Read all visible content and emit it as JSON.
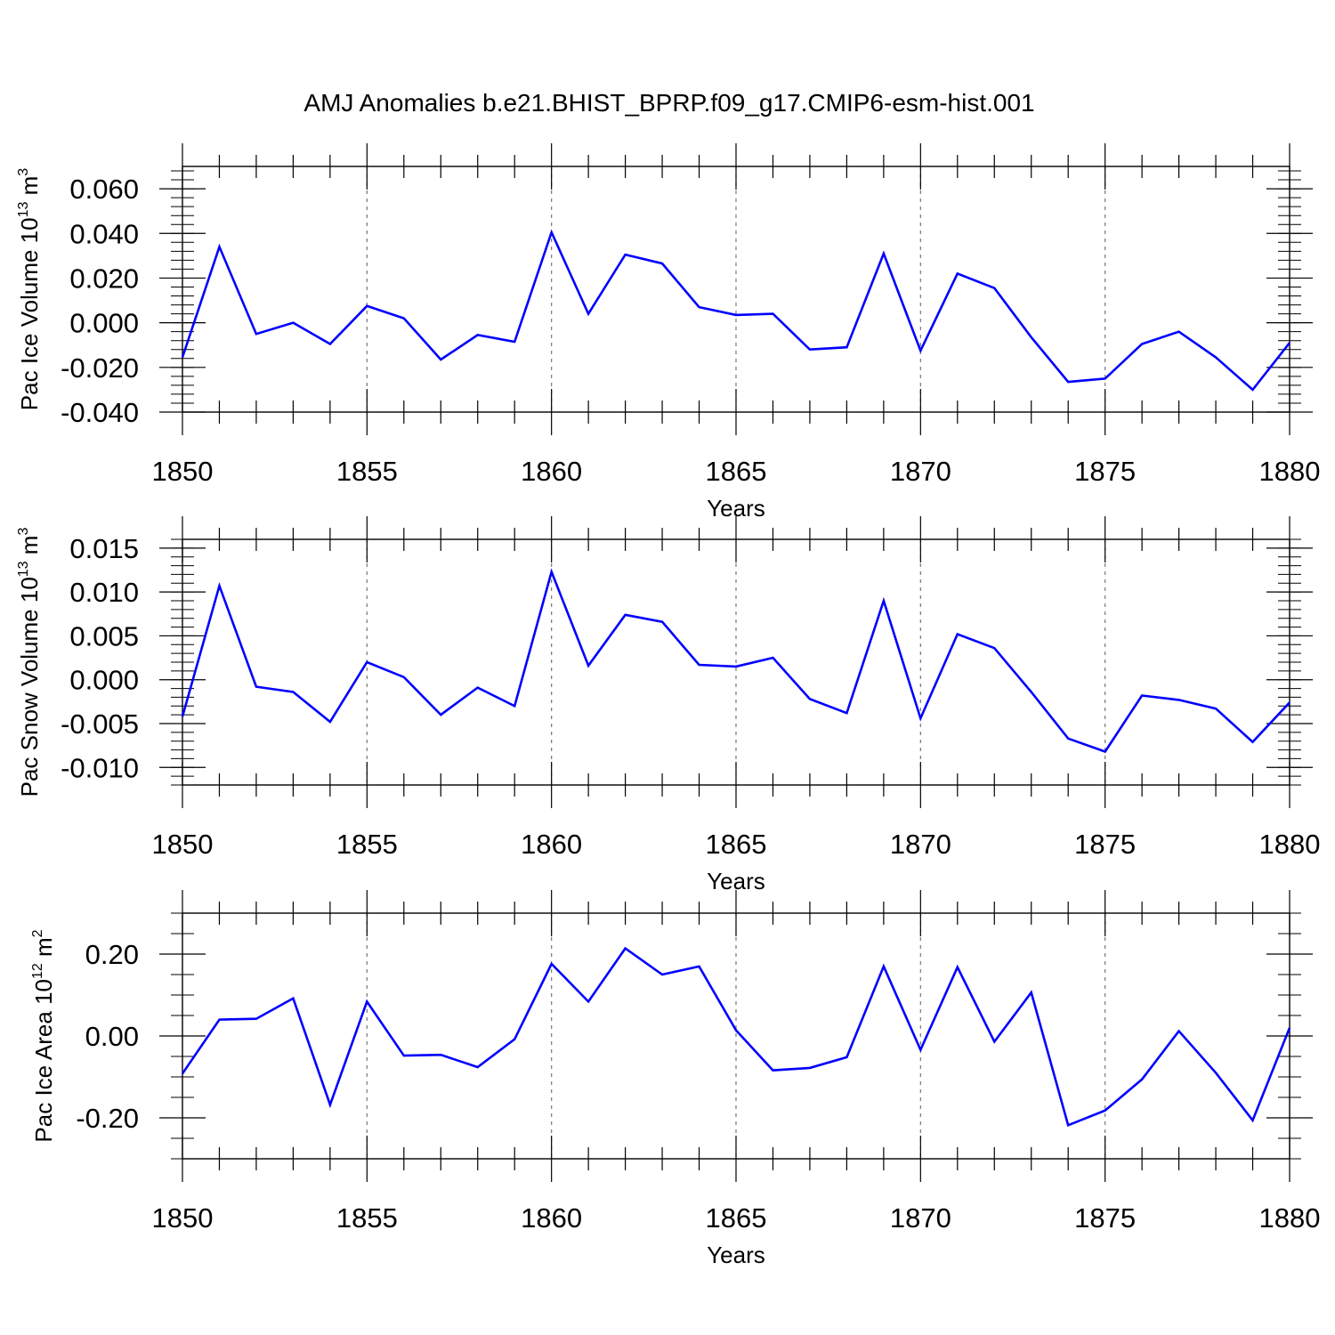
{
  "title": "AMJ Anomalies b.e21.BHIST_BPRP.f09_g17.CMIP6-esm-hist.001",
  "line_color": "#0000ff",
  "chart_data": [
    {
      "type": "line",
      "ylabel": "Pac Ice Volume",
      "ylabel_unit": "10",
      "ylabel_exp": "13",
      "ylabel_unit_tail": " m",
      "ylabel_unit_exp": "3",
      "xlabel": "Years",
      "xlim": [
        1850,
        1880
      ],
      "ylim": [
        -0.04,
        0.07
      ],
      "x_ticks": [
        "1850",
        "1855",
        "1860",
        "1865",
        "1870",
        "1875",
        "1880"
      ],
      "y_ticks": [
        {
          "v": 0.06,
          "label": "0.060"
        },
        {
          "v": 0.04,
          "label": "0.040"
        },
        {
          "v": 0.02,
          "label": "0.020"
        },
        {
          "v": 0.0,
          "label": "0.000"
        },
        {
          "v": -0.02,
          "label": "-0.020"
        },
        {
          "v": -0.04,
          "label": "-0.040"
        }
      ],
      "y_minor_step": 0.004,
      "x": [
        1850,
        1851,
        1852,
        1853,
        1854,
        1855,
        1856,
        1857,
        1858,
        1859,
        1860,
        1861,
        1862,
        1863,
        1864,
        1865,
        1866,
        1867,
        1868,
        1869,
        1870,
        1871,
        1872,
        1873,
        1874,
        1875,
        1876,
        1877,
        1878,
        1879,
        1880
      ],
      "values": [
        -0.0155,
        0.034,
        -0.005,
        0.0,
        -0.0095,
        0.0075,
        0.002,
        -0.0165,
        -0.0055,
        -0.0085,
        0.0405,
        0.004,
        0.0305,
        0.0265,
        0.007,
        0.0035,
        0.004,
        -0.012,
        -0.011,
        0.031,
        -0.0125,
        0.022,
        0.0155,
        -0.0065,
        -0.0265,
        -0.025,
        -0.0095,
        -0.004,
        -0.0155,
        -0.03,
        -0.009
      ]
    },
    {
      "type": "line",
      "ylabel": "Pac Snow Volume",
      "ylabel_unit": "10",
      "ylabel_exp": "13",
      "ylabel_unit_tail": " m",
      "ylabel_unit_exp": "3",
      "xlabel": "Years",
      "xlim": [
        1850,
        1880
      ],
      "ylim": [
        -0.012,
        0.016
      ],
      "x_ticks": [
        "1850",
        "1855",
        "1860",
        "1865",
        "1870",
        "1875",
        "1880"
      ],
      "y_ticks": [
        {
          "v": 0.015,
          "label": "0.015"
        },
        {
          "v": 0.01,
          "label": "0.010"
        },
        {
          "v": 0.005,
          "label": "0.005"
        },
        {
          "v": 0.0,
          "label": "0.000"
        },
        {
          "v": -0.005,
          "label": "-0.005"
        },
        {
          "v": -0.01,
          "label": "-0.010"
        }
      ],
      "y_minor_step": 0.001,
      "x": [
        1850,
        1851,
        1852,
        1853,
        1854,
        1855,
        1856,
        1857,
        1858,
        1859,
        1860,
        1861,
        1862,
        1863,
        1864,
        1865,
        1866,
        1867,
        1868,
        1869,
        1870,
        1871,
        1872,
        1873,
        1874,
        1875,
        1876,
        1877,
        1878,
        1879,
        1880
      ],
      "values": [
        -0.0042,
        0.0107,
        -0.0008,
        -0.0014,
        -0.0048,
        0.002,
        0.0003,
        -0.004,
        -0.0009,
        -0.003,
        0.0123,
        0.0016,
        0.0074,
        0.0066,
        0.0017,
        0.0015,
        0.0025,
        -0.0022,
        -0.0038,
        0.009,
        -0.0044,
        0.0052,
        0.0036,
        -0.0014,
        -0.0067,
        -0.0082,
        -0.0018,
        -0.0023,
        -0.0033,
        -0.0071,
        -0.0026
      ]
    },
    {
      "type": "line",
      "ylabel": "Pac Ice Area",
      "ylabel_unit": "10",
      "ylabel_exp": "12",
      "ylabel_unit_tail": " m",
      "ylabel_unit_exp": "2",
      "xlabel": "Years",
      "xlim": [
        1850,
        1880
      ],
      "ylim": [
        -0.3,
        0.3
      ],
      "x_ticks": [
        "1850",
        "1855",
        "1860",
        "1865",
        "1870",
        "1875",
        "1880"
      ],
      "y_ticks": [
        {
          "v": 0.2,
          "label": "0.20"
        },
        {
          "v": 0.0,
          "label": "0.00"
        },
        {
          "v": -0.2,
          "label": "-0.20"
        }
      ],
      "y_minor_step": 0.05,
      "x": [
        1850,
        1851,
        1852,
        1853,
        1854,
        1855,
        1856,
        1857,
        1858,
        1859,
        1860,
        1861,
        1862,
        1863,
        1864,
        1865,
        1866,
        1867,
        1868,
        1869,
        1870,
        1871,
        1872,
        1873,
        1874,
        1875,
        1876,
        1877,
        1878,
        1879,
        1880
      ],
      "values": [
        -0.092,
        0.04,
        0.042,
        0.092,
        -0.168,
        0.084,
        -0.048,
        -0.046,
        -0.076,
        -0.008,
        0.176,
        0.084,
        0.214,
        0.15,
        0.17,
        0.014,
        -0.084,
        -0.078,
        -0.052,
        0.17,
        -0.034,
        0.168,
        -0.014,
        0.106,
        -0.218,
        -0.182,
        -0.106,
        0.012,
        -0.09,
        -0.206,
        0.02
      ]
    }
  ]
}
